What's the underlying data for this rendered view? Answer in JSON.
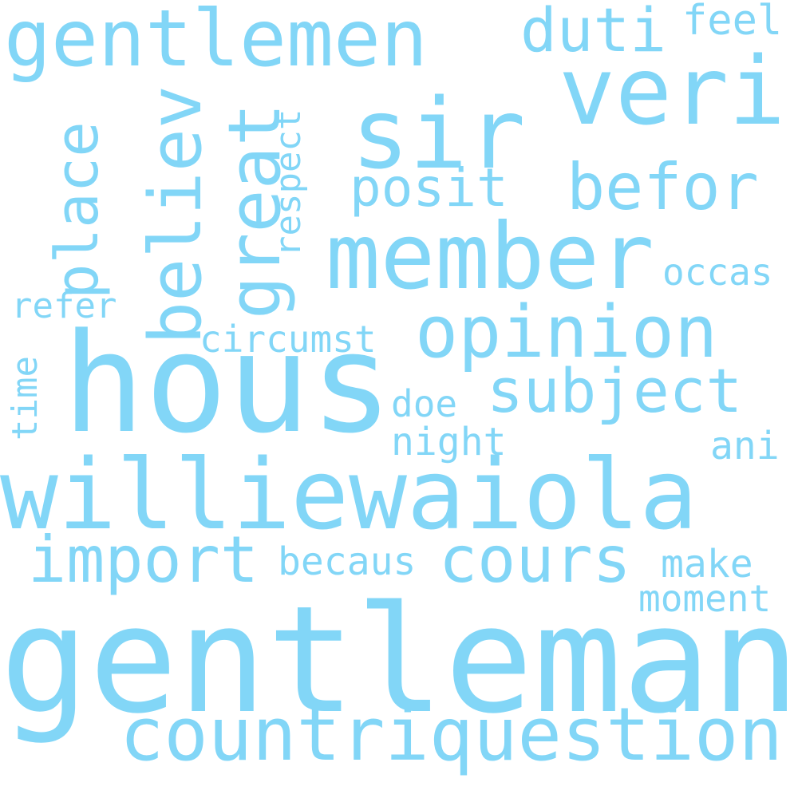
{
  "word_cloud": {
    "color": "#82d6f7",
    "background": "#ffffff",
    "words": {
      "gentleman": "gentleman",
      "williewaiola": "williewaiola",
      "hous": "hous",
      "countriquestion": "countriquestion",
      "member": "member",
      "sir": "sir",
      "gentlemen": "gentlemen",
      "veri": "veri",
      "opinion": "opinion",
      "subject": "subject",
      "cours": "cours",
      "import": "import",
      "befor": "befor",
      "posit": "posit",
      "duti": "duti",
      "feel": "feel",
      "occas": "occas",
      "circumst": "circumst",
      "refer": "refer",
      "doe": "doe",
      "night": "night",
      "ani": "ani",
      "becaus": "becaus",
      "make": "make",
      "moment": "moment",
      "place": "place",
      "believ": "believ",
      "great": "great",
      "respect": "respect",
      "time": "time"
    }
  }
}
